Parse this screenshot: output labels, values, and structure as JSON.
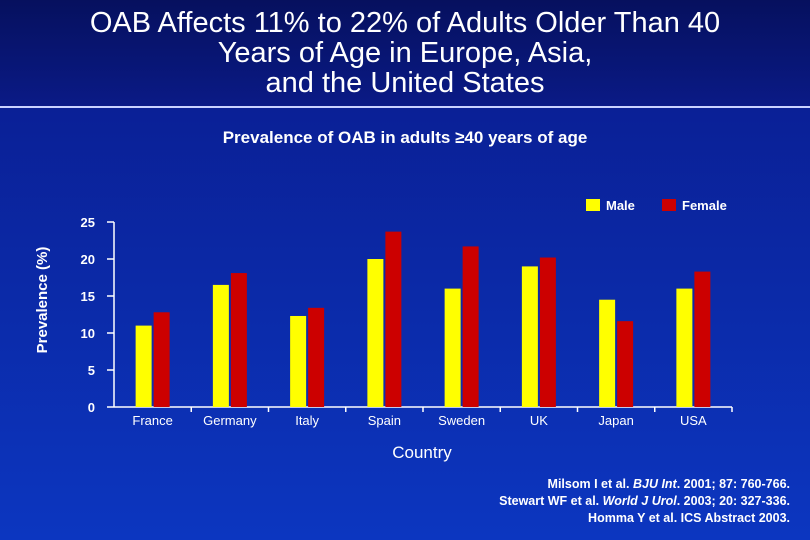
{
  "slide": {
    "title_lines": [
      "OAB Affects 11% to 22% of Adults Older Than 40",
      "Years of Age in Europe, Asia,",
      "and the United States"
    ],
    "references": [
      {
        "pre": "Milsom I et al. ",
        "journal": "BJU Int",
        "post": ". 2001; 87: 760-766."
      },
      {
        "pre": "Stewart WF et al. ",
        "journal": "World J Urol",
        "post": ". 2003; 20: 327-336."
      },
      {
        "pre": "Homma Y et al. ICS Abstract 2003.",
        "journal": "",
        "post": ""
      }
    ]
  },
  "chart_data": {
    "type": "bar",
    "title": "Prevalence of OAB in adults ≥40 years of age",
    "xlabel": "Country",
    "ylabel": "Prevalence (%)",
    "ylim": [
      0,
      25
    ],
    "yticks": [
      0,
      5,
      10,
      15,
      20,
      25
    ],
    "categories": [
      "France",
      "Germany",
      "Italy",
      "Spain",
      "Sweden",
      "UK",
      "Japan",
      "USA"
    ],
    "series": [
      {
        "name": "Male",
        "color": "#ffff00",
        "values": [
          11,
          16.5,
          12.3,
          20,
          16,
          19,
          14.5,
          16
        ]
      },
      {
        "name": "Female",
        "color": "#cc0000",
        "values": [
          12.8,
          18.1,
          13.4,
          23.7,
          21.7,
          20.2,
          11.6,
          18.3
        ]
      }
    ],
    "legend_position": "top-right"
  }
}
